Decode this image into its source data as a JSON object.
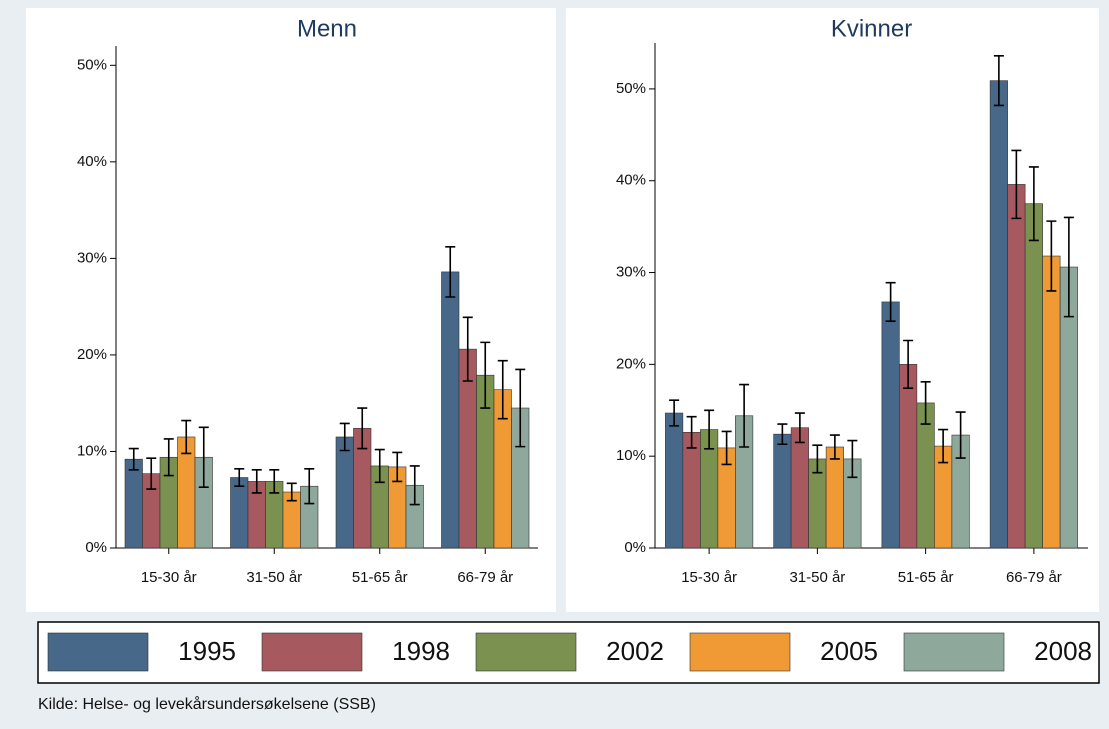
{
  "chart_data": [
    {
      "type": "bar",
      "title": "Menn",
      "categories": [
        "15-30 år",
        "31-50 år",
        "51-65 år",
        "66-79 år"
      ],
      "series": [
        {
          "name": "1995",
          "color": "#476888",
          "values": [
            9.2,
            7.3,
            11.5,
            28.6
          ],
          "errors": [
            1.1,
            0.9,
            1.4,
            2.6
          ]
        },
        {
          "name": "1998",
          "color": "#a65a5f",
          "values": [
            7.7,
            6.9,
            12.4,
            20.6
          ],
          "errors": [
            1.6,
            1.2,
            2.1,
            3.3
          ]
        },
        {
          "name": "2002",
          "color": "#7a9150",
          "values": [
            9.4,
            6.9,
            8.5,
            17.9
          ],
          "errors": [
            1.9,
            1.2,
            1.7,
            3.4
          ]
        },
        {
          "name": "2005",
          "color": "#ef9a34",
          "values": [
            11.5,
            5.8,
            8.4,
            16.4
          ],
          "errors": [
            1.7,
            0.9,
            1.5,
            3.0
          ]
        },
        {
          "name": "2008",
          "color": "#8ea89b",
          "values": [
            9.4,
            6.4,
            6.5,
            14.5
          ],
          "errors": [
            3.1,
            1.8,
            2.0,
            4.0
          ]
        }
      ],
      "ylim": [
        0,
        52
      ],
      "yticks": [
        {
          "value": 0,
          "label": "0%"
        },
        {
          "value": 10,
          "label": "10%"
        },
        {
          "value": 20,
          "label": "20%"
        },
        {
          "value": 30,
          "label": "30%"
        },
        {
          "value": 40,
          "label": "40%"
        },
        {
          "value": 50,
          "label": "50%"
        }
      ]
    },
    {
      "type": "bar",
      "title": "Kvinner",
      "categories": [
        "15-30 år",
        "31-50 år",
        "51-65 år",
        "66-79 år"
      ],
      "series": [
        {
          "values": [
            14.7,
            12.4,
            26.8,
            50.9
          ],
          "errors": [
            1.4,
            1.1,
            2.1,
            2.7
          ]
        },
        {
          "values": [
            12.6,
            13.1,
            20.0,
            39.6
          ],
          "errors": [
            1.7,
            1.6,
            2.6,
            3.7
          ]
        },
        {
          "values": [
            12.9,
            9.7,
            15.8,
            37.5
          ],
          "errors": [
            2.1,
            1.5,
            2.3,
            4.0
          ]
        },
        {
          "values": [
            10.9,
            11.0,
            11.1,
            31.8
          ],
          "errors": [
            1.8,
            1.3,
            1.8,
            3.8
          ]
        },
        {
          "values": [
            14.4,
            9.7,
            12.3,
            30.6
          ],
          "errors": [
            3.4,
            2.0,
            2.5,
            5.4
          ]
        }
      ],
      "ylim": [
        0,
        55
      ],
      "yticks": [
        {
          "value": 0,
          "label": "0%"
        },
        {
          "value": 10,
          "label": "10%"
        },
        {
          "value": 20,
          "label": "20%"
        },
        {
          "value": 30,
          "label": "30%"
        },
        {
          "value": 40,
          "label": "40%"
        },
        {
          "value": 50,
          "label": "50%"
        }
      ]
    }
  ],
  "source": "Kilde: Helse- og levekårsundersøkelsene (SSB)"
}
